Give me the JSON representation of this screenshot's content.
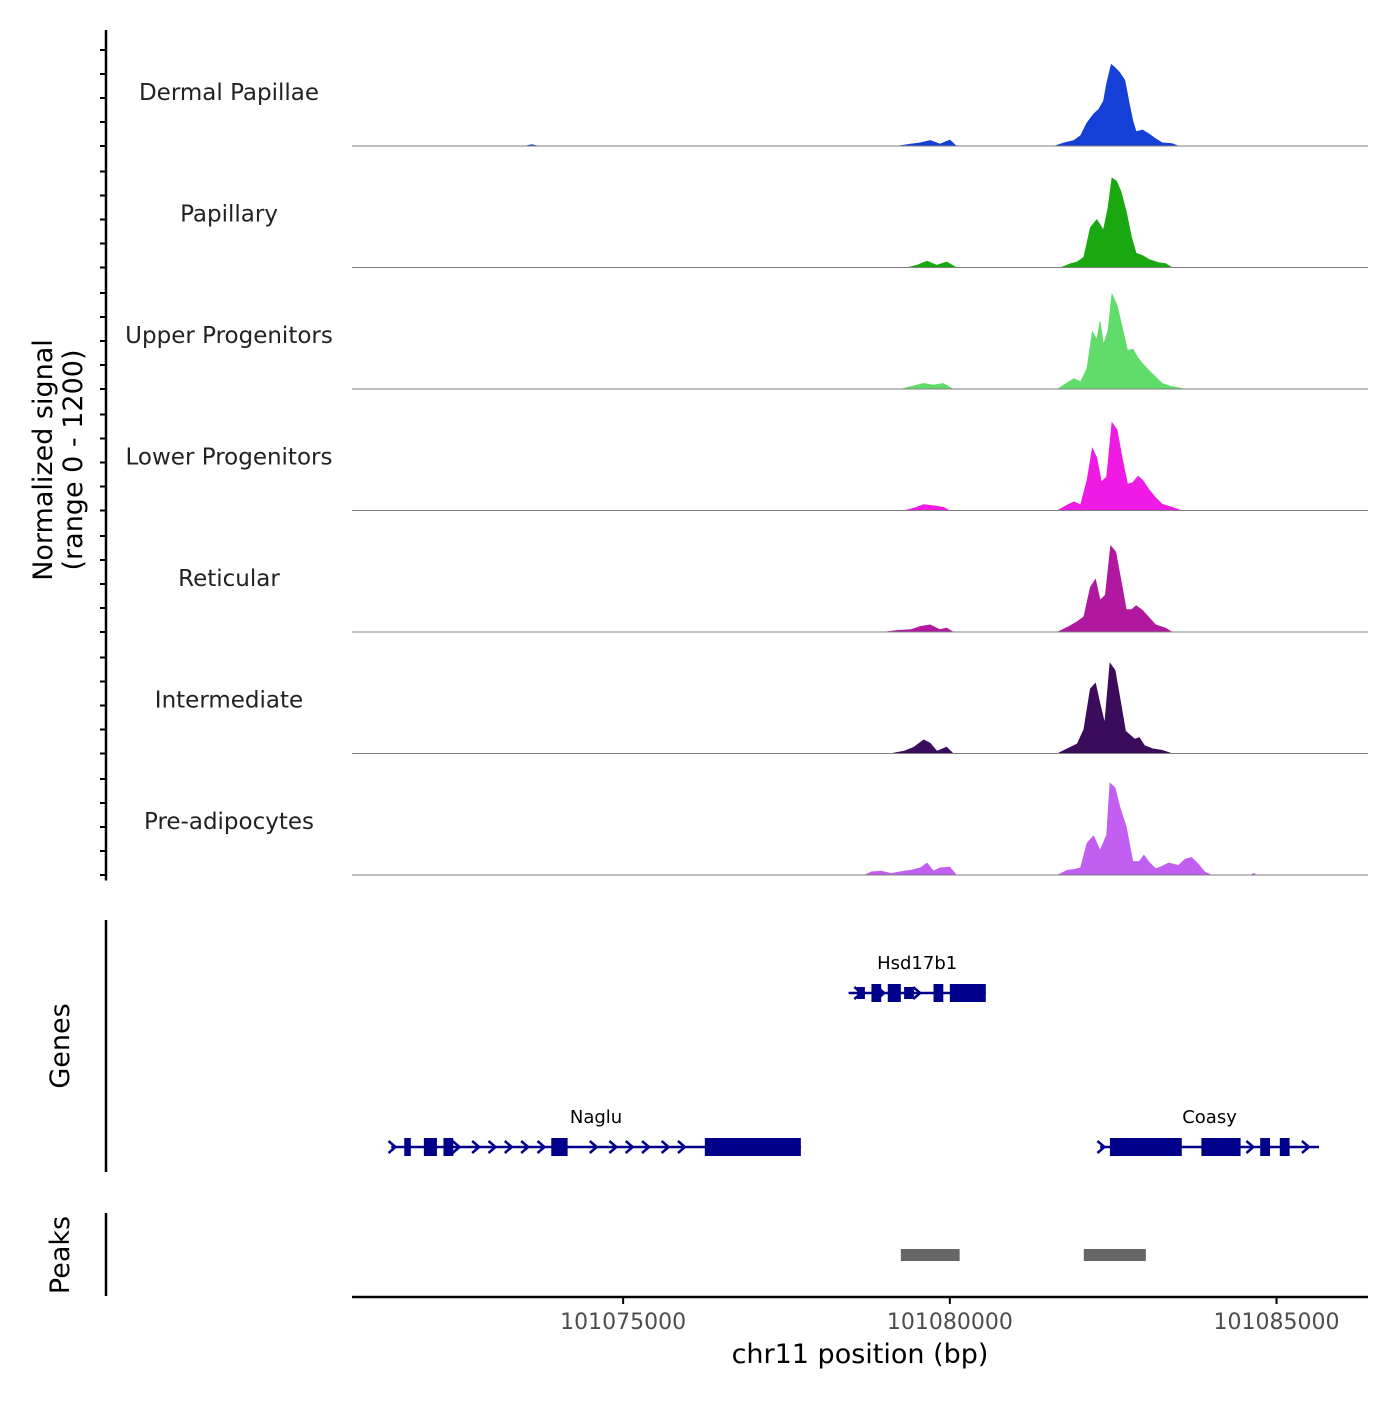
{
  "chart_data": {
    "type": "area",
    "title": "",
    "ylabel_line1": "Normalized signal",
    "ylabel_line2": "(range 0 - 1200)",
    "xlabel": "chr11 position (bp)",
    "xlim": [
      101070850,
      101086400
    ],
    "ylim": [
      0,
      1200
    ],
    "x_ticks": [
      101075000,
      101080000,
      101085000
    ],
    "x_tick_labels": [
      "101075000",
      "101080000",
      "101085000"
    ],
    "tracks": [
      {
        "name": "Dermal Papillae",
        "color": "#1440d8",
        "points": [
          [
            101070850,
            0
          ],
          [
            101073500,
            0
          ],
          [
            101073600,
            18
          ],
          [
            101073700,
            0
          ],
          [
            101079200,
            0
          ],
          [
            101079400,
            25
          ],
          [
            101079550,
            40
          ],
          [
            101079700,
            70
          ],
          [
            101079850,
            25
          ],
          [
            101080000,
            75
          ],
          [
            101080100,
            0
          ],
          [
            101081600,
            0
          ],
          [
            101081750,
            40
          ],
          [
            101081900,
            70
          ],
          [
            101082000,
            130
          ],
          [
            101082100,
            290
          ],
          [
            101082200,
            400
          ],
          [
            101082280,
            460
          ],
          [
            101082350,
            560
          ],
          [
            101082400,
            780
          ],
          [
            101082470,
            1020
          ],
          [
            101082530,
            980
          ],
          [
            101082600,
            920
          ],
          [
            101082680,
            820
          ],
          [
            101082750,
            520
          ],
          [
            101082800,
            320
          ],
          [
            101082850,
            180
          ],
          [
            101082950,
            200
          ],
          [
            101083050,
            150
          ],
          [
            101083150,
            90
          ],
          [
            101083250,
            40
          ],
          [
            101083400,
            30
          ],
          [
            101083500,
            0
          ],
          [
            101086400,
            0
          ]
        ]
      },
      {
        "name": "Papillary",
        "color": "#1aa810",
        "points": [
          [
            101070850,
            0
          ],
          [
            101079350,
            0
          ],
          [
            101079500,
            30
          ],
          [
            101079650,
            80
          ],
          [
            101079800,
            30
          ],
          [
            101079950,
            70
          ],
          [
            101080100,
            0
          ],
          [
            101081700,
            0
          ],
          [
            101081850,
            50
          ],
          [
            101081950,
            70
          ],
          [
            101082050,
            130
          ],
          [
            101082150,
            500
          ],
          [
            101082250,
            600
          ],
          [
            101082350,
            470
          ],
          [
            101082420,
            750
          ],
          [
            101082480,
            1120
          ],
          [
            101082550,
            1080
          ],
          [
            101082620,
            950
          ],
          [
            101082700,
            700
          ],
          [
            101082780,
            380
          ],
          [
            101082850,
            180
          ],
          [
            101082950,
            150
          ],
          [
            101083050,
            100
          ],
          [
            101083200,
            60
          ],
          [
            101083300,
            50
          ],
          [
            101083400,
            0
          ],
          [
            101086400,
            0
          ]
        ]
      },
      {
        "name": "Upper Progenitors",
        "color": "#5fdc6a",
        "points": [
          [
            101070850,
            0
          ],
          [
            101079250,
            0
          ],
          [
            101079450,
            40
          ],
          [
            101079600,
            70
          ],
          [
            101079750,
            50
          ],
          [
            101079900,
            70
          ],
          [
            101080050,
            0
          ],
          [
            101081650,
            0
          ],
          [
            101081800,
            80
          ],
          [
            101081900,
            130
          ],
          [
            101082000,
            90
          ],
          [
            101082100,
            260
          ],
          [
            101082180,
            720
          ],
          [
            101082250,
            620
          ],
          [
            101082300,
            850
          ],
          [
            101082350,
            560
          ],
          [
            101082420,
            730
          ],
          [
            101082480,
            1190
          ],
          [
            101082560,
            1050
          ],
          [
            101082640,
            770
          ],
          [
            101082720,
            480
          ],
          [
            101082800,
            500
          ],
          [
            101082880,
            390
          ],
          [
            101082950,
            320
          ],
          [
            101083050,
            230
          ],
          [
            101083150,
            150
          ],
          [
            101083250,
            70
          ],
          [
            101083400,
            30
          ],
          [
            101083600,
            0
          ],
          [
            101086400,
            0
          ]
        ]
      },
      {
        "name": "Lower Progenitors",
        "color": "#ef1ae3",
        "points": [
          [
            101070850,
            0
          ],
          [
            101079300,
            0
          ],
          [
            101079450,
            30
          ],
          [
            101079600,
            75
          ],
          [
            101079750,
            60
          ],
          [
            101079900,
            40
          ],
          [
            101080000,
            0
          ],
          [
            101081650,
            0
          ],
          [
            101081800,
            70
          ],
          [
            101081900,
            110
          ],
          [
            101082000,
            70
          ],
          [
            101082100,
            380
          ],
          [
            101082180,
            780
          ],
          [
            101082250,
            660
          ],
          [
            101082320,
            360
          ],
          [
            101082400,
            420
          ],
          [
            101082480,
            1100
          ],
          [
            101082560,
            1010
          ],
          [
            101082640,
            650
          ],
          [
            101082720,
            330
          ],
          [
            101082800,
            350
          ],
          [
            101082880,
            430
          ],
          [
            101082950,
            380
          ],
          [
            101083050,
            260
          ],
          [
            101083150,
            160
          ],
          [
            101083250,
            80
          ],
          [
            101083400,
            40
          ],
          [
            101083550,
            0
          ],
          [
            101086400,
            0
          ]
        ]
      },
      {
        "name": "Reticular",
        "color": "#b0199f",
        "points": [
          [
            101070850,
            0
          ],
          [
            101079000,
            0
          ],
          [
            101079200,
            20
          ],
          [
            101079400,
            30
          ],
          [
            101079550,
            70
          ],
          [
            101079700,
            90
          ],
          [
            101079850,
            30
          ],
          [
            101079950,
            50
          ],
          [
            101080050,
            0
          ],
          [
            101081650,
            0
          ],
          [
            101081800,
            60
          ],
          [
            101081950,
            130
          ],
          [
            101082050,
            190
          ],
          [
            101082150,
            560
          ],
          [
            101082230,
            660
          ],
          [
            101082300,
            400
          ],
          [
            101082380,
            460
          ],
          [
            101082460,
            1080
          ],
          [
            101082540,
            1000
          ],
          [
            101082620,
            650
          ],
          [
            101082700,
            280
          ],
          [
            101082780,
            280
          ],
          [
            101082850,
            330
          ],
          [
            101082950,
            270
          ],
          [
            101083050,
            180
          ],
          [
            101083150,
            90
          ],
          [
            101083300,
            50
          ],
          [
            101083400,
            0
          ],
          [
            101086400,
            0
          ]
        ]
      },
      {
        "name": "Intermediate",
        "color": "#3b0b5c",
        "points": [
          [
            101070850,
            0
          ],
          [
            101079100,
            0
          ],
          [
            101079300,
            30
          ],
          [
            101079450,
            80
          ],
          [
            101079600,
            170
          ],
          [
            101079700,
            130
          ],
          [
            101079800,
            30
          ],
          [
            101079950,
            80
          ],
          [
            101080050,
            0
          ],
          [
            101081650,
            0
          ],
          [
            101081800,
            60
          ],
          [
            101081950,
            120
          ],
          [
            101082050,
            300
          ],
          [
            101082150,
            810
          ],
          [
            101082230,
            880
          ],
          [
            101082300,
            620
          ],
          [
            101082370,
            380
          ],
          [
            101082450,
            1130
          ],
          [
            101082530,
            1040
          ],
          [
            101082610,
            660
          ],
          [
            101082690,
            280
          ],
          [
            101082760,
            230
          ],
          [
            101082830,
            180
          ],
          [
            101082900,
            200
          ],
          [
            101082980,
            100
          ],
          [
            101083100,
            60
          ],
          [
            101083250,
            40
          ],
          [
            101083400,
            0
          ],
          [
            101086400,
            0
          ]
        ]
      },
      {
        "name": "Pre-adipocytes",
        "color": "#c25ef2",
        "points": [
          [
            101070850,
            0
          ],
          [
            101078700,
            0
          ],
          [
            101078800,
            40
          ],
          [
            101078950,
            50
          ],
          [
            101079100,
            20
          ],
          [
            101079300,
            50
          ],
          [
            101079400,
            60
          ],
          [
            101079550,
            90
          ],
          [
            101079650,
            150
          ],
          [
            101079750,
            50
          ],
          [
            101079850,
            90
          ],
          [
            101080000,
            100
          ],
          [
            101080100,
            0
          ],
          [
            101081650,
            0
          ],
          [
            101081800,
            60
          ],
          [
            101081900,
            70
          ],
          [
            101082000,
            90
          ],
          [
            101082100,
            400
          ],
          [
            101082200,
            490
          ],
          [
            101082300,
            310
          ],
          [
            101082400,
            500
          ],
          [
            101082450,
            1150
          ],
          [
            101082530,
            1090
          ],
          [
            101082600,
            860
          ],
          [
            101082700,
            600
          ],
          [
            101082800,
            170
          ],
          [
            101082900,
            170
          ],
          [
            101082970,
            250
          ],
          [
            101083050,
            160
          ],
          [
            101083150,
            80
          ],
          [
            101083250,
            110
          ],
          [
            101083350,
            150
          ],
          [
            101083500,
            120
          ],
          [
            101083600,
            200
          ],
          [
            101083700,
            220
          ],
          [
            101083800,
            140
          ],
          [
            101083900,
            40
          ],
          [
            101084000,
            0
          ],
          [
            101084600,
            0
          ],
          [
            101084650,
            20
          ],
          [
            101084700,
            0
          ],
          [
            101086400,
            0
          ]
        ]
      }
    ],
    "genes_label": "Genes",
    "genes": [
      {
        "name": "Hsd17b1",
        "row": 1,
        "strand": "+",
        "start": 101078450,
        "end": 101080550,
        "arrows": [
          101078600,
          101078950,
          101079500
        ],
        "exons": [
          [
            101078580,
            101078700,
            "utr"
          ],
          [
            101078800,
            101078950,
            "cds"
          ],
          [
            101079050,
            101079250,
            "cds"
          ],
          [
            101079300,
            101079450,
            "utr"
          ],
          [
            101079750,
            101079900,
            "cds"
          ],
          [
            101080000,
            101080550,
            "cds"
          ]
        ]
      },
      {
        "name": "Naglu",
        "row": 2,
        "strand": "+",
        "start": 101071450,
        "end": 101077720,
        "arrows": [
          101071470,
          101072450,
          101072750,
          101073000,
          101073250,
          101073500,
          101073750,
          101074550,
          101074850,
          101075100,
          101075350,
          101075650,
          101075900
        ],
        "exons": [
          [
            101071650,
            101071750,
            "cds"
          ],
          [
            101071950,
            101072150,
            "cds"
          ],
          [
            101072250,
            101072400,
            "cds"
          ],
          [
            101073900,
            101074150,
            "cds"
          ],
          [
            101076250,
            101077720,
            "cds"
          ]
        ]
      },
      {
        "name": "Coasy",
        "row": 2,
        "strand": "+",
        "start": 101082300,
        "end": 101085650,
        "arrows": [
          101082320,
          101084200,
          101084600,
          101085450
        ],
        "exons": [
          [
            101082450,
            101083550,
            "cds"
          ],
          [
            101083850,
            101084450,
            "cds"
          ],
          [
            101084750,
            101084900,
            "cds"
          ],
          [
            101085050,
            101085200,
            "cds"
          ]
        ]
      }
    ],
    "peaks_label": "Peaks",
    "peaks": [
      [
        101079250,
        101080150
      ],
      [
        101082050,
        101083000
      ]
    ],
    "colors": {
      "gene": "#00008b",
      "peak": "#666666",
      "axis": "#000000",
      "baseline": "#7f7f7f",
      "text": "#222222"
    }
  }
}
